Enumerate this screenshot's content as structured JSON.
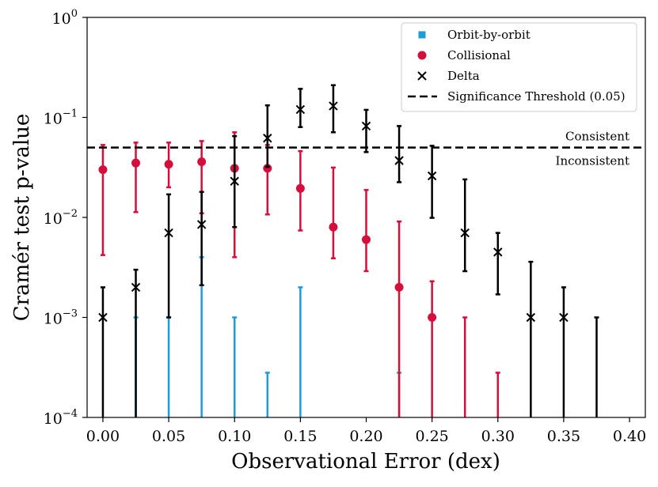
{
  "chart_data": {
    "type": "scatter",
    "title": "",
    "xlabel": "Observational Error (dex)",
    "ylabel": "Cramér test p-value",
    "xlim": [
      -0.012,
      0.412
    ],
    "ylim": [
      0.0001,
      1
    ],
    "yscale": "log",
    "x_ticks": [
      0.0,
      0.05,
      0.1,
      0.15,
      0.2,
      0.25,
      0.3,
      0.35,
      0.4
    ],
    "x_tick_labels": [
      "0.00",
      "0.05",
      "0.10",
      "0.15",
      "0.20",
      "0.25",
      "0.30",
      "0.35",
      "0.40"
    ],
    "y_ticks": [
      {
        "value": 0.0001,
        "base": "10",
        "exp": "−4"
      },
      {
        "value": 0.001,
        "base": "10",
        "exp": "−3"
      },
      {
        "value": 0.01,
        "base": "10",
        "exp": "−2"
      },
      {
        "value": 0.1,
        "base": "10",
        "exp": "−1"
      },
      {
        "value": 1,
        "base": "10",
        "exp": "0"
      }
    ],
    "grid": false,
    "legend_position": "top-right",
    "threshold": {
      "name": "Significance Threshold (0.05)",
      "value": 0.05,
      "color": "#000000",
      "label_above": "Consistent",
      "label_below": "Inconsistent"
    },
    "series": [
      {
        "name": "Orbit-by-orbit",
        "marker": "square",
        "color": "#1f9bd7",
        "points": [
          {
            "x": 0.025,
            "y": 0.0001,
            "lo": 0.0001,
            "hi": 0.001
          },
          {
            "x": 0.05,
            "y": 0.0001,
            "lo": 0.0001,
            "hi": 0.001
          },
          {
            "x": 0.075,
            "y": 0.0001,
            "lo": 0.0001,
            "hi": 0.004
          },
          {
            "x": 0.1,
            "y": 0.0001,
            "lo": 0.0001,
            "hi": 0.001
          },
          {
            "x": 0.125,
            "y": 0.0001,
            "lo": 0.0001,
            "hi": 0.00028
          },
          {
            "x": 0.15,
            "y": 0.0001,
            "lo": 0.0001,
            "hi": 0.002
          },
          {
            "x": 0.225,
            "y": 0.0001,
            "lo": 0.0001,
            "hi": 0.00028
          }
        ]
      },
      {
        "name": "Collisional",
        "marker": "circle",
        "color": "#d40f3c",
        "points": [
          {
            "x": 0.0,
            "y": 0.03,
            "lo": 0.0042,
            "hi": 0.053
          },
          {
            "x": 0.025,
            "y": 0.035,
            "lo": 0.0113,
            "hi": 0.056
          },
          {
            "x": 0.05,
            "y": 0.034,
            "lo": 0.02,
            "hi": 0.056
          },
          {
            "x": 0.075,
            "y": 0.036,
            "lo": 0.011,
            "hi": 0.058
          },
          {
            "x": 0.1,
            "y": 0.031,
            "lo": 0.004,
            "hi": 0.071
          },
          {
            "x": 0.125,
            "y": 0.031,
            "lo": 0.0107,
            "hi": 0.053
          },
          {
            "x": 0.15,
            "y": 0.0195,
            "lo": 0.0074,
            "hi": 0.046
          },
          {
            "x": 0.175,
            "y": 0.008,
            "lo": 0.0039,
            "hi": 0.0315
          },
          {
            "x": 0.2,
            "y": 0.006,
            "lo": 0.0029,
            "hi": 0.0188
          },
          {
            "x": 0.225,
            "y": 0.002,
            "lo": 0.0001,
            "hi": 0.0091
          },
          {
            "x": 0.25,
            "y": 0.001,
            "lo": 0.0001,
            "hi": 0.0023
          },
          {
            "x": 0.275,
            "y": 0.0001,
            "lo": 0.0001,
            "hi": 0.001
          },
          {
            "x": 0.3,
            "y": 0.0001,
            "lo": 0.0001,
            "hi": 0.00028
          }
        ]
      },
      {
        "name": "Delta",
        "marker": "x",
        "color": "#000000",
        "points": [
          {
            "x": 0.0,
            "y": 0.001,
            "lo": 0.0001,
            "hi": 0.002
          },
          {
            "x": 0.025,
            "y": 0.002,
            "lo": 0.0001,
            "hi": 0.003
          },
          {
            "x": 0.05,
            "y": 0.007,
            "lo": 0.001,
            "hi": 0.017
          },
          {
            "x": 0.075,
            "y": 0.0085,
            "lo": 0.0021,
            "hi": 0.018
          },
          {
            "x": 0.1,
            "y": 0.023,
            "lo": 0.008,
            "hi": 0.065
          },
          {
            "x": 0.125,
            "y": 0.062,
            "lo": 0.032,
            "hi": 0.132
          },
          {
            "x": 0.15,
            "y": 0.12,
            "lo": 0.08,
            "hi": 0.193
          },
          {
            "x": 0.175,
            "y": 0.13,
            "lo": 0.071,
            "hi": 0.21
          },
          {
            "x": 0.2,
            "y": 0.082,
            "lo": 0.045,
            "hi": 0.119
          },
          {
            "x": 0.225,
            "y": 0.037,
            "lo": 0.0225,
            "hi": 0.082
          },
          {
            "x": 0.25,
            "y": 0.026,
            "lo": 0.0099,
            "hi": 0.052
          },
          {
            "x": 0.275,
            "y": 0.007,
            "lo": 0.0029,
            "hi": 0.024
          },
          {
            "x": 0.3,
            "y": 0.0045,
            "lo": 0.0017,
            "hi": 0.007
          },
          {
            "x": 0.325,
            "y": 0.001,
            "lo": 0.0001,
            "hi": 0.0036
          },
          {
            "x": 0.35,
            "y": 0.001,
            "lo": 0.0001,
            "hi": 0.002
          },
          {
            "x": 0.375,
            "y": 0.0001,
            "lo": 0.0001,
            "hi": 0.001
          }
        ]
      }
    ]
  }
}
